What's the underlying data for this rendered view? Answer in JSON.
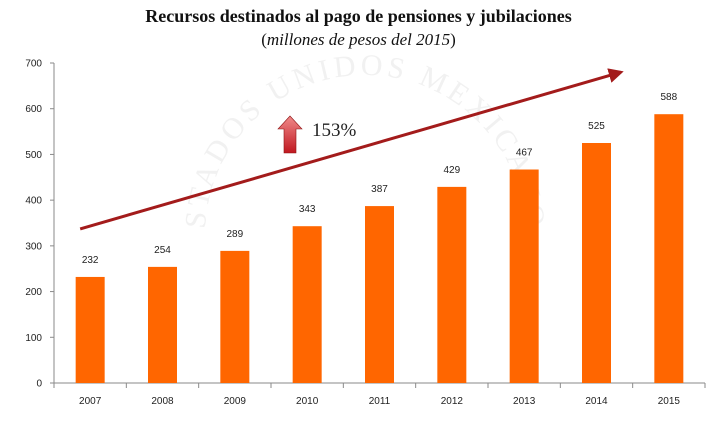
{
  "chart_data": {
    "type": "bar",
    "title": "Recursos destinados al pago de pensiones y jubilaciones",
    "subtitle_open": "(",
    "subtitle": "millones de pesos del 2015",
    "subtitle_close": ")",
    "categories": [
      "2007",
      "2008",
      "2009",
      "2010",
      "2011",
      "2012",
      "2013",
      "2014",
      "2015"
    ],
    "values": [
      232,
      254,
      289,
      343,
      387,
      429,
      467,
      525,
      588
    ],
    "ylim": [
      0,
      700
    ],
    "yticks": [
      "0",
      "100",
      "200",
      "300",
      "400",
      "500",
      "600",
      "700"
    ],
    "ytick_values": [
      0,
      100,
      200,
      300,
      400,
      500,
      600,
      700
    ],
    "xlabel": "",
    "ylabel": "",
    "grid": false,
    "annotation": {
      "text": "153%",
      "trend_from_value": 232,
      "trend_to_value": 588
    },
    "colors": {
      "bar": "#ff6600",
      "trend": "#a31b1b",
      "arrow_light": "#f08a8a",
      "arrow_dark": "#c0171f"
    },
    "watermark": {
      "text": "ESTADOS UNIDOS MEXICANOS",
      "color": "#f1f1f1"
    }
  }
}
